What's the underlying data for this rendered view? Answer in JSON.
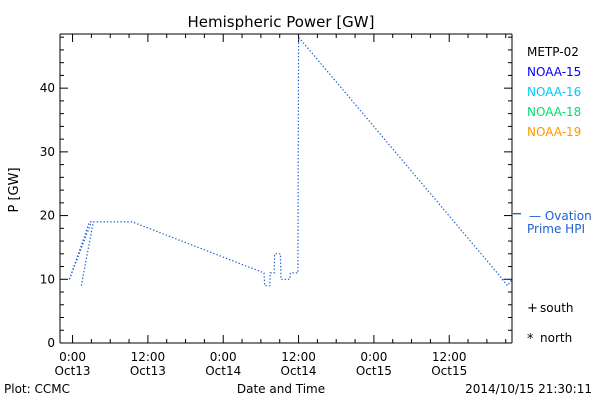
{
  "chart_data": {
    "type": "line",
    "title": "Hemispheric Power [GW]",
    "xlabel": "Date and Time",
    "ylabel": "P [GW]",
    "ylim": [
      0,
      48.5
    ],
    "yticks": [
      0,
      10,
      20,
      30,
      40
    ],
    "xlim_hours": [
      -2,
      70
    ],
    "x_tick_hours": [
      0,
      12,
      24,
      36,
      48,
      60
    ],
    "x_tick_labels": [
      [
        "0:00",
        "Oct13"
      ],
      [
        "12:00",
        "Oct13"
      ],
      [
        "0:00",
        "Oct14"
      ],
      [
        "12:00",
        "Oct14"
      ],
      [
        "0:00",
        "Oct15"
      ],
      [
        "12:00",
        "Oct15"
      ]
    ],
    "grid": false,
    "legend_placement": "right",
    "series": [
      {
        "name": "METP-02",
        "color": "#000000",
        "points": []
      },
      {
        "name": "NOAA-15",
        "color": "#0000ff",
        "points": []
      },
      {
        "name": "NOAA-16",
        "color": "#00c8ff",
        "points": []
      },
      {
        "name": "NOAA-18",
        "color": "#00e070",
        "points": []
      },
      {
        "name": "NOAA-19",
        "color": "#ff9900",
        "points": []
      }
    ],
    "ovation": {
      "name": "Ovation Prime HPI",
      "label_line1": "— Ovation",
      "label_line2": "Prime HPI",
      "color": "#1f5fcf",
      "points": [
        [
          -0.5,
          10
        ],
        [
          2.7,
          19
        ],
        [
          9.5,
          19
        ],
        [
          30.5,
          11
        ],
        [
          30.6,
          9
        ],
        [
          31.4,
          9
        ],
        [
          31.5,
          11
        ],
        [
          32.1,
          11
        ],
        [
          32.2,
          14
        ],
        [
          33.1,
          14
        ],
        [
          33.2,
          10
        ],
        [
          34.6,
          10
        ],
        [
          34.7,
          11
        ],
        [
          35.9,
          11
        ],
        [
          36.0,
          48
        ],
        [
          68.5,
          10
        ],
        [
          70.0,
          10
        ]
      ],
      "extra_segments": [
        [
          [
            -0.5,
            10
          ],
          [
            3.0,
            19
          ]
        ],
        [
          [
            1.4,
            9
          ],
          [
            3.3,
            19
          ]
        ],
        [
          [
            68.4,
            10
          ],
          [
            69.3,
            9
          ],
          [
            70.0,
            10
          ]
        ]
      ]
    },
    "hemisphere_markers": [
      {
        "symbol": "+",
        "label": "south"
      },
      {
        "symbol": "*",
        "label": "north"
      }
    ]
  },
  "footer": {
    "left": "Plot: CCMC",
    "right": "2014/10/15 21:30:11"
  }
}
